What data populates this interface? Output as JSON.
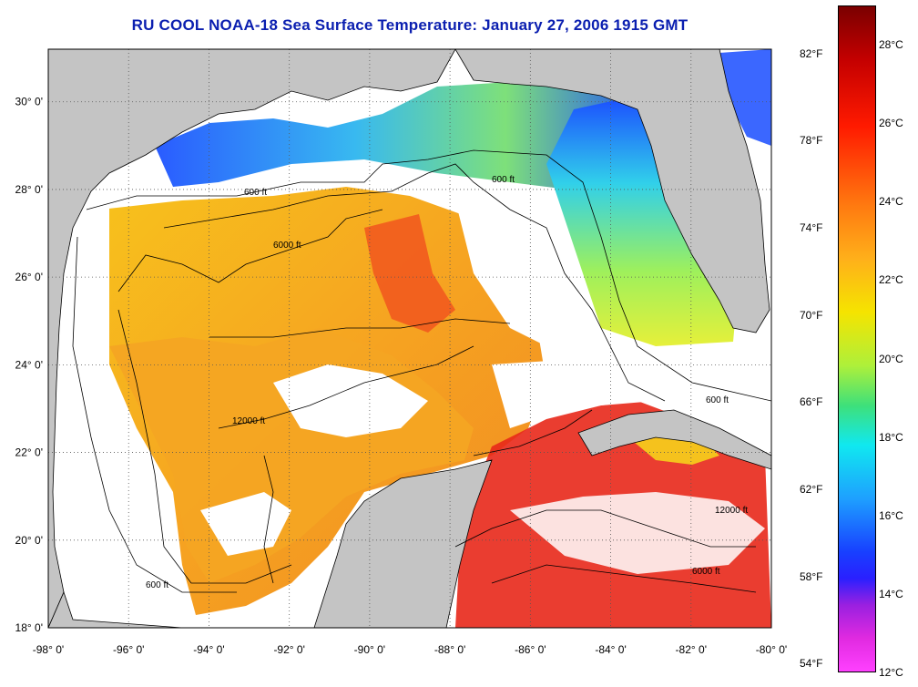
{
  "title": "RU COOL  NOAA-18  Sea Surface Temperature:  January 27, 2006 1915 GMT",
  "map": {
    "lon_ticks": [
      "-98° 0'",
      "-96° 0'",
      "-94° 0'",
      "-92° 0'",
      "-90° 0'",
      "-88° 0'",
      "-86° 0'",
      "-84° 0'",
      "-82° 0'",
      "-80° 0'"
    ],
    "lat_ticks": [
      "30° 0'",
      "28° 0'",
      "26° 0'",
      "24° 0'",
      "22° 0'",
      "20° 0'",
      "18° 0'"
    ],
    "lon_range": [
      -98,
      -80
    ],
    "lat_range": [
      18,
      31.2
    ],
    "land_color": "#c4c4c4",
    "cloud_color": "#ffffff",
    "contour_labels": [
      "600 ft",
      "6000 ft",
      "12000 ft"
    ]
  },
  "colorbar": {
    "celsius_labels": [
      "28°C",
      "26°C",
      "24°C",
      "22°C",
      "20°C",
      "18°C",
      "16°C",
      "14°C",
      "12°C"
    ],
    "fahrenheit_labels": [
      "82°F",
      "78°F",
      "74°F",
      "70°F",
      "66°F",
      "62°F",
      "58°F",
      "54°F"
    ],
    "range_celsius": [
      12,
      29
    ]
  }
}
